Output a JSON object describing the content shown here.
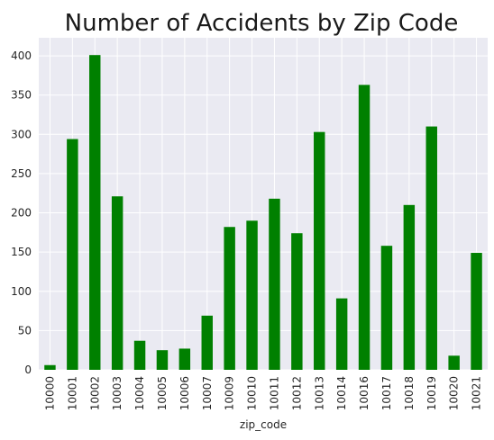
{
  "chart_data": {
    "type": "bar",
    "title": "Number of Accidents by Zip Code",
    "xlabel": "zip_code",
    "ylabel": "",
    "categories": [
      "10000",
      "10001",
      "10002",
      "10003",
      "10004",
      "10005",
      "10006",
      "10007",
      "10009",
      "10010",
      "10011",
      "10012",
      "10013",
      "10014",
      "10016",
      "10017",
      "10018",
      "10019",
      "10020",
      "10021"
    ],
    "values": [
      6,
      294,
      401,
      221,
      37,
      25,
      27,
      69,
      182,
      190,
      218,
      174,
      303,
      91,
      363,
      158,
      210,
      310,
      18,
      149
    ],
    "ylim": [
      0,
      423
    ],
    "yticks": [
      0,
      50,
      100,
      150,
      200,
      250,
      300,
      350,
      400
    ],
    "grid": true,
    "colors": {
      "bar": "#008000",
      "plot_background": "#eaeaf2",
      "grid": "#ffffff"
    }
  }
}
